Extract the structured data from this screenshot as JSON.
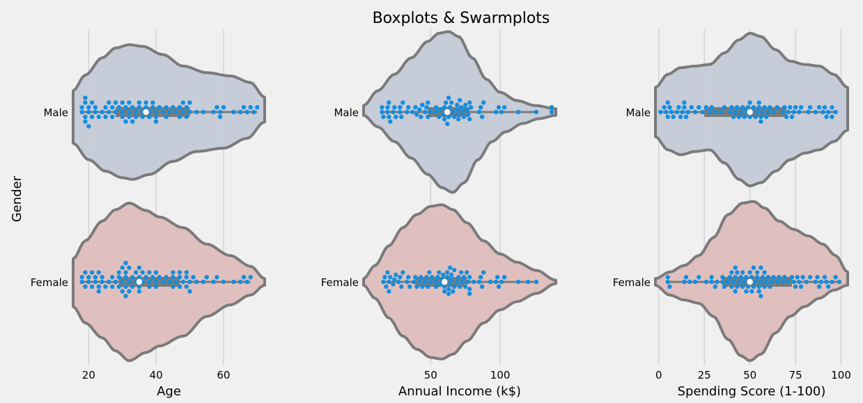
{
  "figure": {
    "title": "Boxplots & Swarmplots",
    "ylabel": "Gender"
  },
  "chart_data": [
    {
      "type": "violin",
      "orientation": "horizontal",
      "xlabel": "Age",
      "ylabel": "Gender",
      "categories": [
        "Male",
        "Female"
      ],
      "xlim": [
        15.4,
        72.2
      ],
      "xticks": [
        20,
        40,
        60
      ],
      "grid": "vertical",
      "box": {
        "Male": {
          "q1": 28,
          "median": 37,
          "q3": 50,
          "whisker_low": 18,
          "whisker_high": 70
        },
        "Female": {
          "q1": 29,
          "median": 35,
          "q3": 47,
          "whisker_low": 18,
          "whisker_high": 68
        }
      },
      "violin_extent": {
        "Male": {
          "min": 15.4,
          "max": 72.2
        },
        "Female": {
          "min": 15.4,
          "max": 72.2
        }
      },
      "density_top": {
        "Male": [
          [
            15.4,
            0.26
          ],
          [
            19,
            0.45
          ],
          [
            24,
            0.66
          ],
          [
            28,
            0.78
          ],
          [
            32,
            0.82
          ],
          [
            36,
            0.8
          ],
          [
            42,
            0.7
          ],
          [
            48,
            0.56
          ],
          [
            55,
            0.48
          ],
          [
            62,
            0.44
          ],
          [
            68,
            0.36
          ],
          [
            72.2,
            0.18
          ]
        ],
        "Female": [
          [
            15.4,
            0.28
          ],
          [
            19,
            0.5
          ],
          [
            24,
            0.74
          ],
          [
            28,
            0.88
          ],
          [
            32,
            0.96
          ],
          [
            37,
            0.87
          ],
          [
            41,
            0.79
          ],
          [
            48,
            0.66
          ],
          [
            55,
            0.46
          ],
          [
            62,
            0.32
          ],
          [
            68,
            0.19
          ],
          [
            72.2,
            0.04
          ]
        ]
      },
      "density_bottom": {
        "Male": [
          [
            15.4,
            0.38
          ],
          [
            20,
            0.58
          ],
          [
            25,
            0.72
          ],
          [
            30,
            0.8
          ],
          [
            33,
            0.82
          ],
          [
            38,
            0.76
          ],
          [
            45,
            0.6
          ],
          [
            52,
            0.48
          ],
          [
            60,
            0.44
          ],
          [
            67,
            0.32
          ],
          [
            72.2,
            0.12
          ]
        ],
        "Female": [
          [
            15.4,
            0.3
          ],
          [
            19,
            0.5
          ],
          [
            24,
            0.68
          ],
          [
            28,
            0.84
          ],
          [
            32,
            0.96
          ],
          [
            37,
            0.86
          ],
          [
            41,
            0.78
          ],
          [
            48,
            0.66
          ],
          [
            55,
            0.42
          ],
          [
            62,
            0.28
          ],
          [
            68,
            0.16
          ],
          [
            72.2,
            0.04
          ]
        ]
      },
      "points": {
        "Male": [
          18,
          18,
          19,
          19,
          19,
          19,
          20,
          20,
          20,
          21,
          21,
          22,
          22,
          23,
          24,
          25,
          25,
          26,
          26,
          27,
          27,
          28,
          28,
          29,
          30,
          30,
          30,
          31,
          31,
          32,
          32,
          32,
          33,
          33,
          34,
          34,
          35,
          35,
          36,
          36,
          37,
          37,
          38,
          38,
          39,
          39,
          40,
          40,
          40,
          41,
          42,
          43,
          43,
          44,
          45,
          46,
          47,
          47,
          48,
          48,
          49,
          49,
          50,
          50,
          52,
          54,
          57,
          58,
          59,
          59,
          60,
          63,
          65,
          66,
          67,
          68,
          69,
          70
        ],
        "Female": [
          18,
          18,
          19,
          19,
          20,
          20,
          21,
          21,
          22,
          22,
          23,
          23,
          23,
          24,
          24,
          25,
          26,
          27,
          27,
          28,
          29,
          29,
          29,
          30,
          30,
          30,
          31,
          31,
          31,
          31,
          31,
          32,
          32,
          32,
          33,
          33,
          34,
          34,
          35,
          35,
          35,
          35,
          36,
          36,
          37,
          38,
          38,
          38,
          39,
          40,
          40,
          40,
          41,
          42,
          43,
          44,
          45,
          45,
          45,
          46,
          47,
          47,
          47,
          48,
          49,
          49,
          49,
          50,
          50,
          51,
          52,
          54,
          55,
          57,
          58,
          60,
          63,
          65,
          66,
          67,
          68
        ]
      }
    },
    {
      "type": "violin",
      "orientation": "horizontal",
      "xlabel": "Annual Income (k$)",
      "ylabel": "",
      "categories": [
        "Male",
        "Female"
      ],
      "xlim": [
        1.8,
        140
      ],
      "xticks": [
        50,
        100
      ],
      "grid": "vertical",
      "box": {
        "Male": {
          "q1": 48,
          "median": 62,
          "q3": 78,
          "whisker_low": 15,
          "whisker_high": 126
        },
        "Female": {
          "q1": 39,
          "median": 60,
          "q3": 76,
          "whisker_low": 16,
          "whisker_high": 126
        }
      },
      "violin_extent": {
        "Male": {
          "min": 1.8,
          "max": 140
        },
        "Female": {
          "min": 1.8,
          "max": 140
        }
      },
      "density_top": {
        "Male": [
          [
            1.8,
            0.08
          ],
          [
            12,
            0.26
          ],
          [
            24,
            0.46
          ],
          [
            36,
            0.66
          ],
          [
            48,
            0.86
          ],
          [
            56,
            0.96
          ],
          [
            63,
            0.98
          ],
          [
            70,
            0.92
          ],
          [
            80,
            0.66
          ],
          [
            90,
            0.4
          ],
          [
            100,
            0.24
          ],
          [
            112,
            0.14
          ],
          [
            125,
            0.08
          ],
          [
            140,
            0.04
          ]
        ],
        "Female": [
          [
            1.8,
            0.04
          ],
          [
            10,
            0.2
          ],
          [
            20,
            0.44
          ],
          [
            30,
            0.66
          ],
          [
            40,
            0.82
          ],
          [
            50,
            0.92
          ],
          [
            58,
            0.94
          ],
          [
            66,
            0.88
          ],
          [
            76,
            0.72
          ],
          [
            88,
            0.5
          ],
          [
            100,
            0.34
          ],
          [
            112,
            0.24
          ],
          [
            126,
            0.14
          ],
          [
            140,
            0.02
          ]
        ]
      },
      "density_bottom": {
        "Male": [
          [
            1.8,
            0.04
          ],
          [
            12,
            0.18
          ],
          [
            24,
            0.36
          ],
          [
            36,
            0.56
          ],
          [
            48,
            0.76
          ],
          [
            58,
            0.92
          ],
          [
            66,
            0.98
          ],
          [
            74,
            0.86
          ],
          [
            84,
            0.58
          ],
          [
            94,
            0.36
          ],
          [
            104,
            0.24
          ],
          [
            116,
            0.14
          ],
          [
            128,
            0.08
          ],
          [
            140,
            0.04
          ]
        ],
        "Female": [
          [
            1.8,
            0.04
          ],
          [
            10,
            0.2
          ],
          [
            20,
            0.44
          ],
          [
            30,
            0.66
          ],
          [
            40,
            0.82
          ],
          [
            50,
            0.92
          ],
          [
            58,
            0.94
          ],
          [
            66,
            0.88
          ],
          [
            76,
            0.72
          ],
          [
            88,
            0.5
          ],
          [
            100,
            0.34
          ],
          [
            112,
            0.24
          ],
          [
            126,
            0.14
          ],
          [
            140,
            0.02
          ]
        ]
      },
      "points": {
        "Male": [
          15,
          15,
          16,
          19,
          19,
          20,
          20,
          21,
          23,
          24,
          25,
          28,
          28,
          29,
          30,
          33,
          34,
          37,
          39,
          40,
          42,
          43,
          44,
          46,
          47,
          48,
          48,
          50,
          54,
          54,
          56,
          57,
          59,
          60,
          60,
          61,
          62,
          62,
          63,
          63,
          64,
          65,
          66,
          67,
          69,
          69,
          70,
          70,
          71,
          72,
          73,
          74,
          75,
          76,
          77,
          78,
          78,
          79,
          85,
          86,
          87,
          88,
          97,
          99,
          101,
          103,
          113,
          126,
          137,
          137
        ],
        "Female": [
          16,
          17,
          18,
          19,
          20,
          20,
          21,
          23,
          24,
          25,
          27,
          28,
          29,
          30,
          33,
          34,
          35,
          38,
          39,
          40,
          42,
          43,
          44,
          46,
          47,
          48,
          49,
          50,
          51,
          54,
          54,
          55,
          56,
          57,
          58,
          59,
          60,
          60,
          61,
          62,
          62,
          63,
          63,
          64,
          64,
          65,
          65,
          66,
          67,
          67,
          69,
          70,
          71,
          72,
          73,
          74,
          75,
          76,
          77,
          78,
          78,
          78,
          81,
          85,
          86,
          87,
          88,
          93,
          97,
          98,
          99,
          101,
          103,
          113,
          120,
          126
        ]
      }
    },
    {
      "type": "violin",
      "orientation": "horizontal",
      "xlabel": "Spending Score (1-100)",
      "ylabel": "",
      "categories": [
        "Male",
        "Female"
      ],
      "xlim": [
        -1.8,
        103.6
      ],
      "xticks": [
        0,
        25,
        50,
        75,
        100
      ],
      "grid": "vertical",
      "box": {
        "Male": {
          "q1": 25,
          "median": 50,
          "q3": 70,
          "whisker_low": 1,
          "whisker_high": 97
        },
        "Female": {
          "q1": 35,
          "median": 50,
          "q3": 73,
          "whisker_low": 5,
          "whisker_high": 99
        }
      },
      "violin_extent": {
        "Male": {
          "min": -1.8,
          "max": 103.6
        },
        "Female": {
          "min": -1.8,
          "max": 103.6
        }
      },
      "density_top": {
        "Male": [
          [
            -1.8,
            0.3
          ],
          [
            5,
            0.46
          ],
          [
            12,
            0.54
          ],
          [
            20,
            0.56
          ],
          [
            28,
            0.58
          ],
          [
            36,
            0.72
          ],
          [
            44,
            0.88
          ],
          [
            50,
            0.96
          ],
          [
            56,
            0.92
          ],
          [
            64,
            0.76
          ],
          [
            72,
            0.62
          ],
          [
            80,
            0.58
          ],
          [
            88,
            0.56
          ],
          [
            96,
            0.46
          ],
          [
            103.6,
            0.3
          ]
        ],
        "Female": [
          [
            -1.8,
            0.04
          ],
          [
            6,
            0.12
          ],
          [
            14,
            0.2
          ],
          [
            22,
            0.32
          ],
          [
            30,
            0.54
          ],
          [
            38,
            0.82
          ],
          [
            46,
            0.96
          ],
          [
            52,
            0.98
          ],
          [
            58,
            0.9
          ],
          [
            66,
            0.74
          ],
          [
            74,
            0.64
          ],
          [
            82,
            0.56
          ],
          [
            90,
            0.46
          ],
          [
            97,
            0.32
          ],
          [
            103.6,
            0.12
          ]
        ]
      },
      "density_bottom": {
        "Male": [
          [
            -1.8,
            0.3
          ],
          [
            5,
            0.46
          ],
          [
            12,
            0.52
          ],
          [
            20,
            0.48
          ],
          [
            28,
            0.46
          ],
          [
            36,
            0.62
          ],
          [
            44,
            0.82
          ],
          [
            50,
            0.9
          ],
          [
            56,
            0.86
          ],
          [
            64,
            0.72
          ],
          [
            72,
            0.58
          ],
          [
            80,
            0.5
          ],
          [
            88,
            0.46
          ],
          [
            96,
            0.36
          ],
          [
            103.6,
            0.22
          ]
        ],
        "Female": [
          [
            -1.8,
            0.04
          ],
          [
            6,
            0.16
          ],
          [
            14,
            0.22
          ],
          [
            22,
            0.26
          ],
          [
            30,
            0.42
          ],
          [
            38,
            0.7
          ],
          [
            45,
            0.9
          ],
          [
            50,
            0.96
          ],
          [
            56,
            0.88
          ],
          [
            64,
            0.62
          ],
          [
            72,
            0.42
          ],
          [
            80,
            0.3
          ],
          [
            88,
            0.2
          ],
          [
            96,
            0.1
          ],
          [
            103.6,
            0.04
          ]
        ]
      },
      "points": {
        "Male": [
          1,
          3,
          4,
          5,
          5,
          6,
          7,
          8,
          10,
          11,
          12,
          13,
          14,
          14,
          15,
          16,
          18,
          20,
          22,
          24,
          26,
          28,
          29,
          31,
          34,
          36,
          39,
          40,
          41,
          42,
          43,
          44,
          45,
          46,
          47,
          48,
          49,
          50,
          50,
          51,
          52,
          53,
          54,
          55,
          55,
          56,
          56,
          57,
          58,
          59,
          60,
          61,
          63,
          65,
          68,
          69,
          70,
          71,
          72,
          73,
          74,
          75,
          77,
          78,
          82,
          83,
          86,
          88,
          90,
          91,
          92,
          93,
          95,
          95,
          97
        ],
        "Female": [
          5,
          5,
          6,
          14,
          15,
          17,
          20,
          22,
          26,
          29,
          29,
          31,
          32,
          35,
          35,
          36,
          38,
          39,
          40,
          40,
          41,
          42,
          42,
          42,
          43,
          43,
          44,
          45,
          46,
          46,
          47,
          48,
          48,
          49,
          50,
          50,
          51,
          51,
          52,
          52,
          53,
          54,
          54,
          55,
          55,
          56,
          56,
          56,
          57,
          58,
          58,
          59,
          60,
          61,
          62,
          63,
          65,
          66,
          68,
          69,
          71,
          73,
          74,
          75,
          76,
          77,
          78,
          79,
          81,
          83,
          86,
          87,
          88,
          89,
          91,
          92,
          93,
          95,
          97,
          99
        ]
      }
    }
  ],
  "colors": {
    "background": "#f0f0f0",
    "grid": "#cbcbcb",
    "outline": "#7a7a7a",
    "box": "#7a7a7a",
    "male_fill": "#c3c9d6",
    "female_fill": "#ddbdbc",
    "point": "#138ede",
    "median": "#ffffff"
  }
}
